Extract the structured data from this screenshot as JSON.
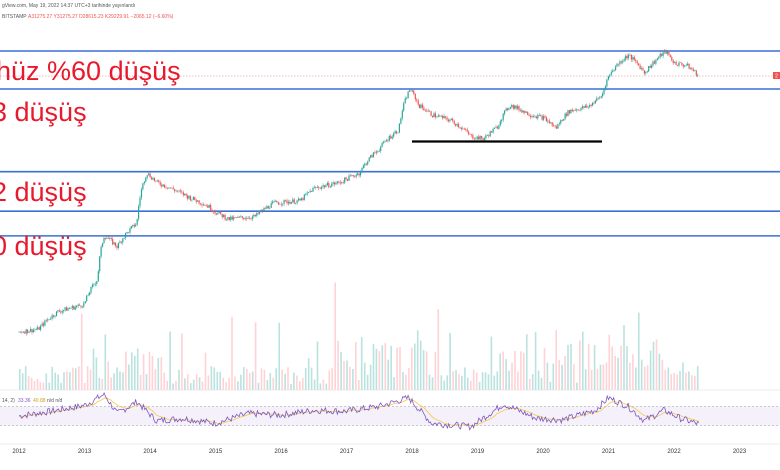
{
  "header": {
    "line1": "gView.com, May 19, 2022 14:37 UTC+3 tarihinde yayınlandı",
    "symbol": "BITSTAMP",
    "ohlc": "A31275.27  Y31275.27  D28615.23  K29229.91  −2065.12 (−6.60%)"
  },
  "annotations": [
    "hüz %60 düşüş",
    "3 düşüş",
    "2 düşüş",
    "0 düşüş"
  ],
  "price_badge": "2",
  "rsi_label": {
    "name": "14, 2)",
    "v1": "33.36",
    "v2": "40.88",
    "tail": "n/d  n/d"
  },
  "chart_data": {
    "type": "line",
    "title": "",
    "xlabel": "",
    "ylabel": "",
    "log_scale": true,
    "colors": {
      "up": "#26a69a",
      "down": "#ef5350",
      "hline": "#3d6fd6",
      "trend": "#000000",
      "annotation": "#e8192c",
      "rsi": "#7e57c2",
      "rsi_ma": "#f2c94c"
    },
    "x_ticks": [
      "2012",
      "2013",
      "2014",
      "2015",
      "2016",
      "2017",
      "2018",
      "2019",
      "2020",
      "2021",
      "2022",
      "2023"
    ],
    "price": {
      "x": [
        2012.0,
        2012.3,
        2012.6,
        2012.9,
        2013.0,
        2013.2,
        2013.3,
        2013.5,
        2013.8,
        2013.95,
        2014.1,
        2014.4,
        2014.6,
        2014.9,
        2015.0,
        2015.2,
        2015.6,
        2015.9,
        2016.3,
        2016.5,
        2016.9,
        2017.2,
        2017.5,
        2017.8,
        2017.97,
        2018.1,
        2018.3,
        2018.6,
        2018.9,
        2019.1,
        2019.3,
        2019.5,
        2019.8,
        2020.0,
        2020.2,
        2020.4,
        2020.7,
        2020.9,
        2021.0,
        2021.1,
        2021.3,
        2021.55,
        2021.7,
        2021.87,
        2022.0,
        2022.2,
        2022.38
      ],
      "y": [
        5,
        5.5,
        10,
        12,
        13,
        30,
        130,
        90,
        200,
        1100,
        800,
        600,
        480,
        350,
        290,
        230,
        250,
        400,
        430,
        650,
        800,
        1100,
        2500,
        4800,
        19000,
        11000,
        8000,
        6500,
        3800,
        3500,
        5200,
        11000,
        8000,
        7200,
        5000,
        9000,
        10500,
        15000,
        29000,
        40000,
        60000,
        33000,
        48000,
        68000,
        46000,
        42000,
        29500
      ]
    },
    "horizontal_levels_price": [
      69000,
      19000,
      1150,
      300,
      130
    ],
    "trendline": {
      "x": [
        2018.0,
        2020.9
      ],
      "y": [
        3200,
        3200
      ]
    },
    "rsi": {
      "period": 14,
      "x": [
        2012.0,
        2012.5,
        2013.0,
        2013.3,
        2013.5,
        2013.8,
        2014.1,
        2014.5,
        2015.0,
        2015.5,
        2016.0,
        2016.5,
        2017.0,
        2017.5,
        2017.95,
        2018.3,
        2018.9,
        2019.4,
        2019.9,
        2020.3,
        2020.8,
        2021.0,
        2021.3,
        2021.55,
        2021.85,
        2022.1,
        2022.38
      ],
      "values": [
        50,
        60,
        72,
        95,
        55,
        80,
        40,
        45,
        35,
        55,
        52,
        62,
        60,
        70,
        88,
        35,
        28,
        75,
        45,
        42,
        62,
        88,
        70,
        40,
        62,
        45,
        33
      ],
      "levels": [
        70,
        30
      ]
    }
  }
}
